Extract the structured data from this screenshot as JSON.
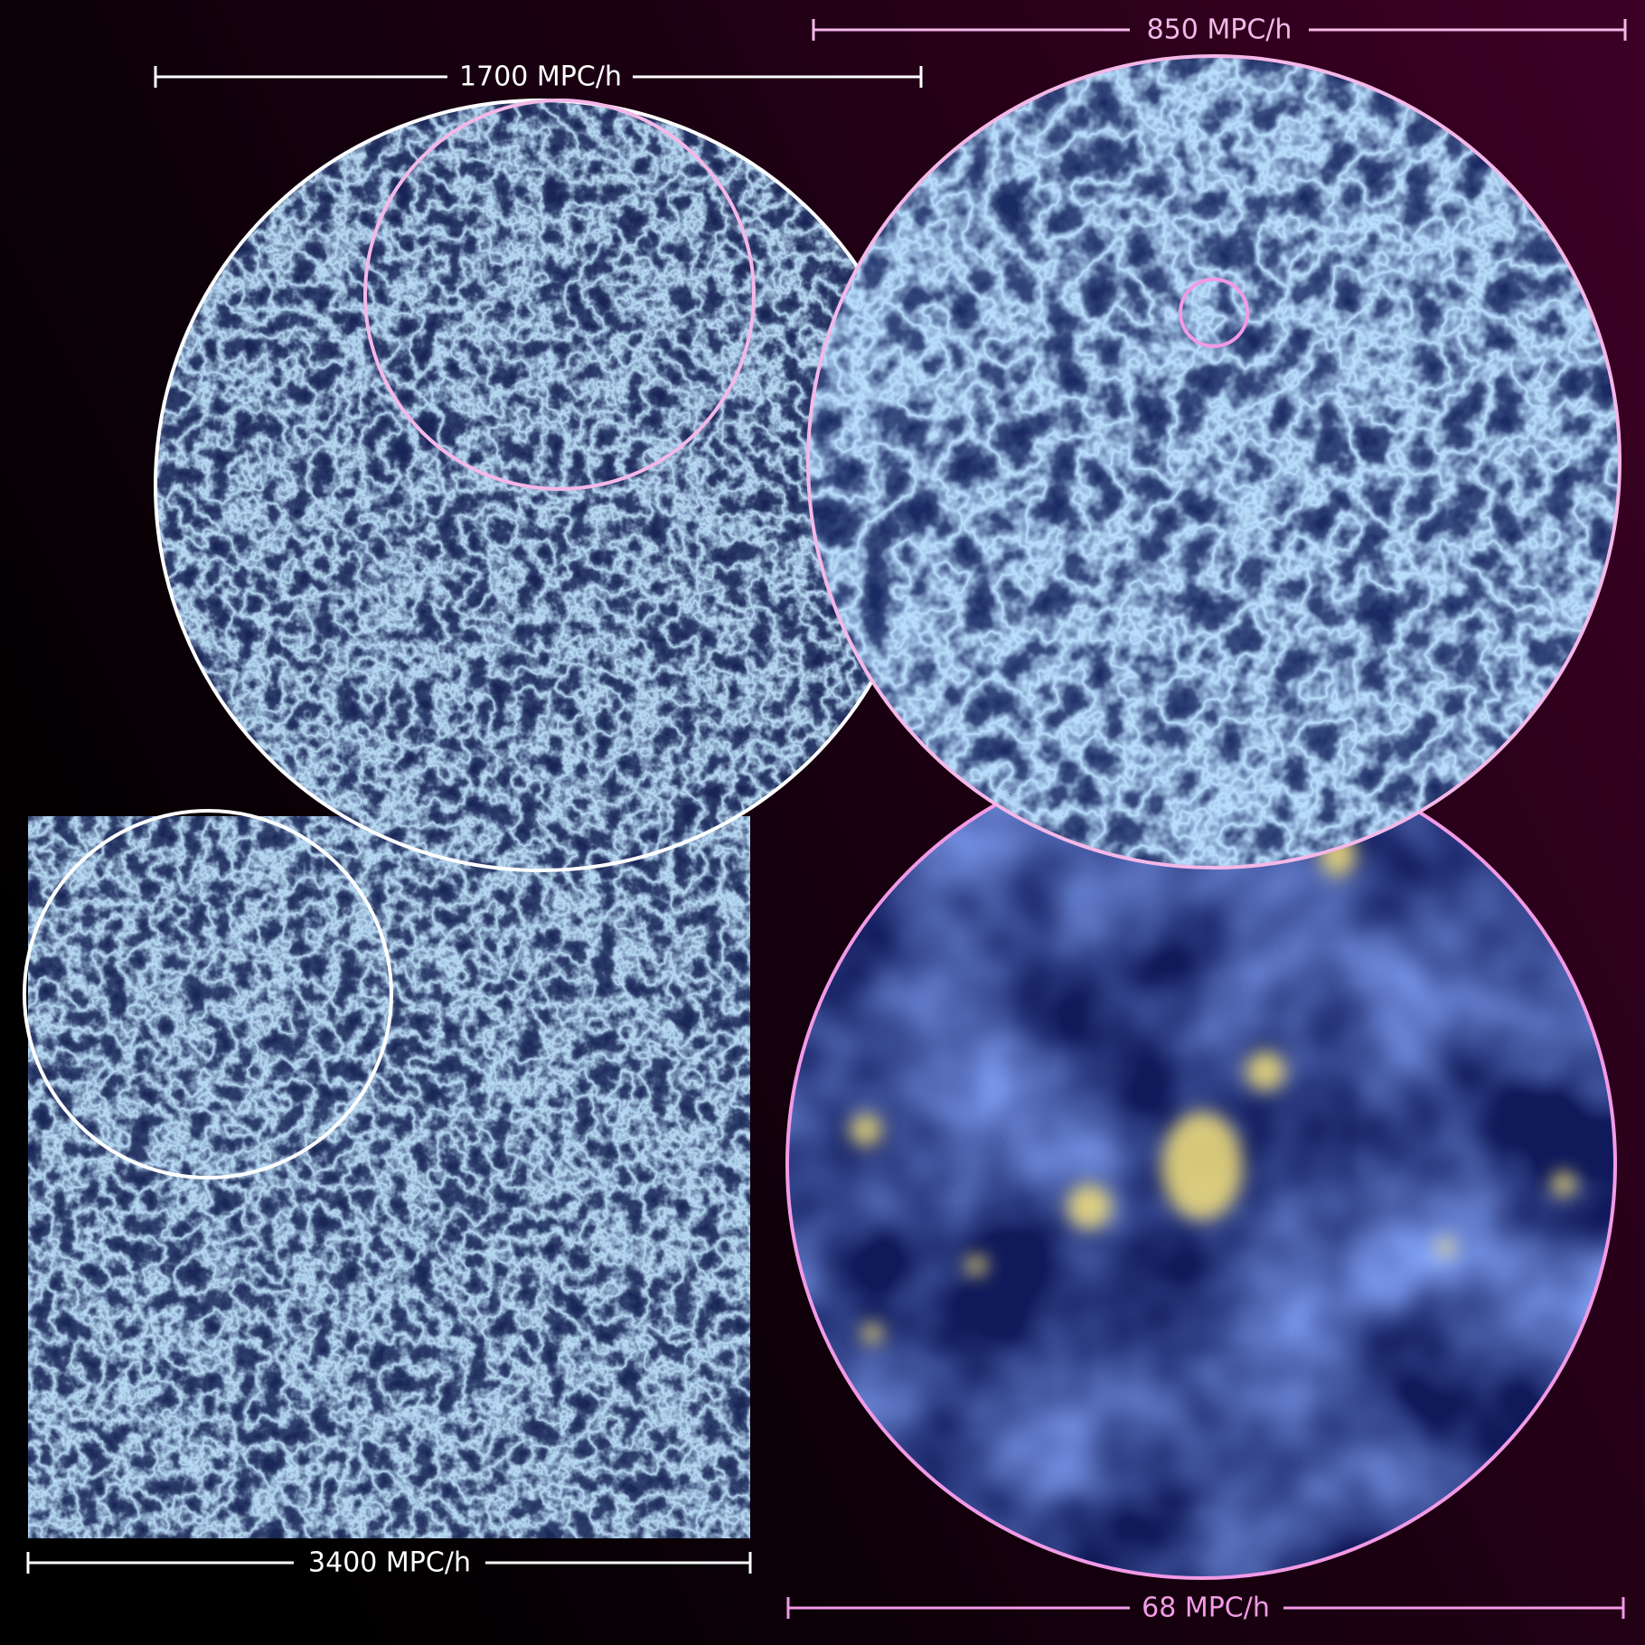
{
  "scale_labels": [
    "1700 MPC/h",
    "850 MPC/h",
    "3400 MPC/h",
    "68 MPC/h"
  ]
}
